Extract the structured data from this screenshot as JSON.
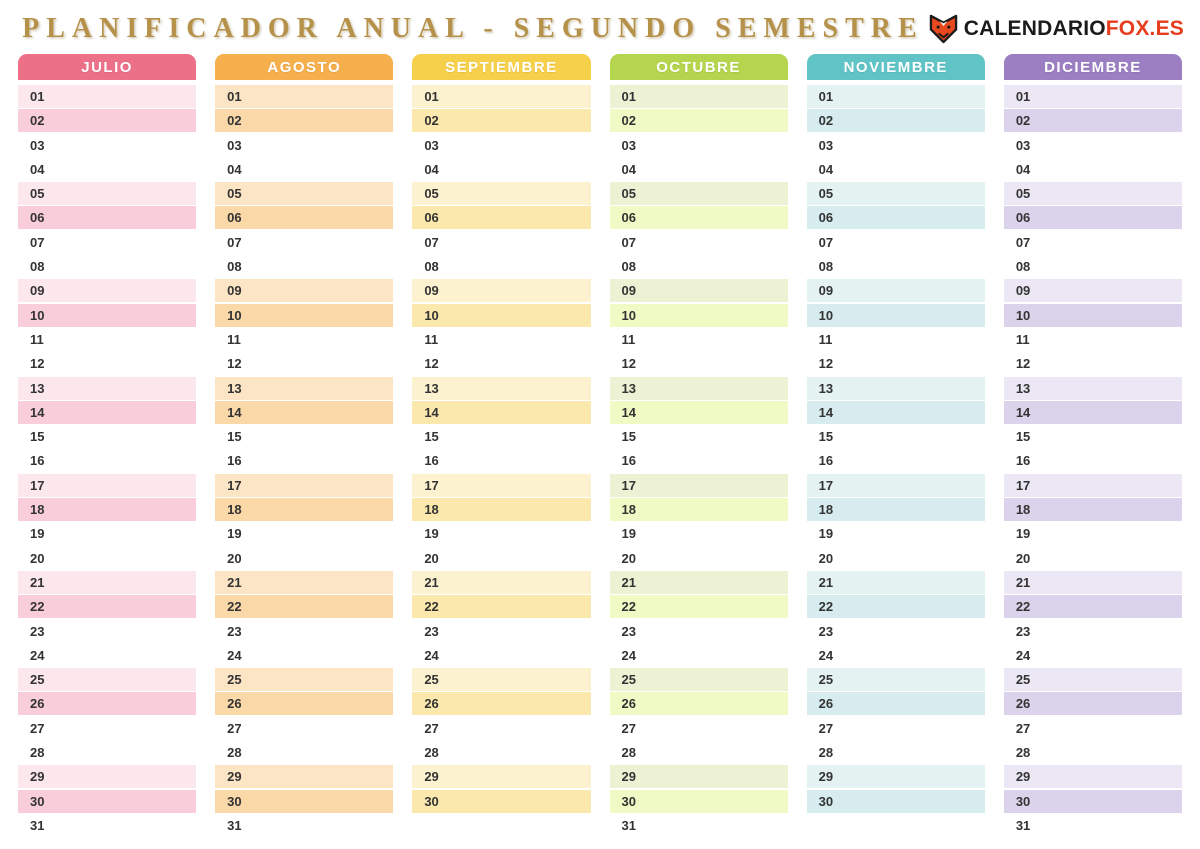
{
  "header": {
    "title": "PLANIFICADOR ANUAL - SEGUNDO SEMESTRE",
    "title_color": "#B6914A",
    "brand": {
      "icon": "fox-icon",
      "name_primary": "CALENDARIO",
      "name_secondary": "FOX.ES",
      "color_primary": "#1B1B1B",
      "color_secondary": "#E63D1E",
      "icon_fill": "#E8491F",
      "icon_stroke": "#1B1B1B"
    }
  },
  "day_text_color": "#333333",
  "months": [
    {
      "id": "julio",
      "name": "JULIO",
      "colors": {
        "header": "#ED7089",
        "row_light": "#FCE7ED",
        "row_dark": "#F9CEDA"
      },
      "days": [
        "01",
        "02",
        "03",
        "04",
        "05",
        "06",
        "07",
        "08",
        "09",
        "10",
        "11",
        "12",
        "13",
        "14",
        "15",
        "16",
        "17",
        "18",
        "19",
        "20",
        "21",
        "22",
        "23",
        "24",
        "25",
        "26",
        "27",
        "28",
        "29",
        "30",
        "31"
      ]
    },
    {
      "id": "agosto",
      "name": "AGOSTO",
      "colors": {
        "header": "#F6AF4D",
        "row_light": "#FCE5C4",
        "row_dark": "#FAD8A7"
      },
      "days": [
        "01",
        "02",
        "03",
        "04",
        "05",
        "06",
        "07",
        "08",
        "09",
        "10",
        "11",
        "12",
        "13",
        "14",
        "15",
        "16",
        "17",
        "18",
        "19",
        "20",
        "21",
        "22",
        "23",
        "24",
        "25",
        "26",
        "27",
        "28",
        "29",
        "30",
        "31"
      ]
    },
    {
      "id": "septiembre",
      "name": "SEPTIEMBRE",
      "colors": {
        "header": "#F7D04B",
        "row_light": "#FDF2D0",
        "row_dark": "#FBE8AC"
      },
      "days": [
        "01",
        "02",
        "03",
        "04",
        "05",
        "06",
        "07",
        "08",
        "09",
        "10",
        "11",
        "12",
        "13",
        "14",
        "15",
        "16",
        "17",
        "18",
        "19",
        "20",
        "21",
        "22",
        "23",
        "24",
        "25",
        "26",
        "27",
        "28",
        "29",
        "30"
      ]
    },
    {
      "id": "octubre",
      "name": "OCTUBRE",
      "colors": {
        "header": "#B5D54F",
        "row_light": "#EDF2D5",
        "row_dark": "#EFFAC5"
      },
      "days": [
        "01",
        "02",
        "03",
        "04",
        "05",
        "06",
        "07",
        "08",
        "09",
        "10",
        "11",
        "12",
        "13",
        "14",
        "15",
        "16",
        "17",
        "18",
        "19",
        "20",
        "21",
        "22",
        "23",
        "24",
        "25",
        "26",
        "27",
        "28",
        "29",
        "30",
        "31"
      ]
    },
    {
      "id": "noviembre",
      "name": "NOVIEMBRE",
      "colors": {
        "header": "#60C4C6",
        "row_light": "#E4F2F2",
        "row_dark": "#D6ECEF"
      },
      "days": [
        "01",
        "02",
        "03",
        "04",
        "05",
        "06",
        "07",
        "08",
        "09",
        "10",
        "11",
        "12",
        "13",
        "14",
        "15",
        "16",
        "17",
        "18",
        "19",
        "20",
        "21",
        "22",
        "23",
        "24",
        "25",
        "26",
        "27",
        "28",
        "29",
        "30"
      ]
    },
    {
      "id": "diciembre",
      "name": "DICIEMBRE",
      "colors": {
        "header": "#9B7FC2",
        "row_light": "#EBE7F5",
        "row_dark": "#DBD3EB"
      },
      "days": [
        "01",
        "02",
        "03",
        "04",
        "05",
        "06",
        "07",
        "08",
        "09",
        "10",
        "11",
        "12",
        "13",
        "14",
        "15",
        "16",
        "17",
        "18",
        "19",
        "20",
        "21",
        "22",
        "23",
        "24",
        "25",
        "26",
        "27",
        "28",
        "29",
        "30",
        "31"
      ]
    }
  ]
}
